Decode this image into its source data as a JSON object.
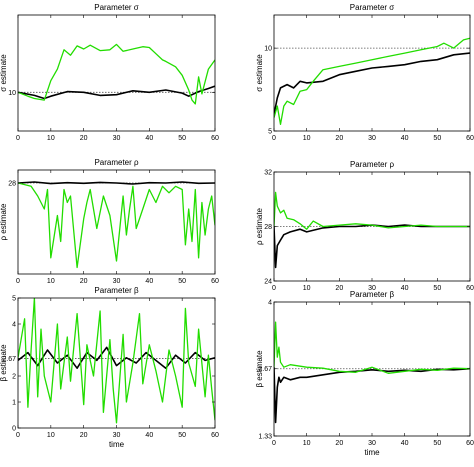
{
  "colors": {
    "true_series": "#000000",
    "estimate_series": "#22dd00",
    "reference_line": "#555555"
  },
  "chart_data": [
    {
      "type": "line",
      "title": "Parameter σ",
      "xlabel": "",
      "ylabel": "σ estimate",
      "xlim": [
        0,
        60
      ],
      "ylim": [
        5,
        20
      ],
      "xticks": [
        0,
        10,
        20,
        30,
        40,
        50,
        60
      ],
      "yticks": [
        10
      ],
      "reference": 10,
      "series": [
        {
          "x": [
            0,
            5,
            8,
            10,
            15,
            20,
            25,
            30,
            35,
            40,
            45,
            50,
            52,
            55,
            58,
            60
          ],
          "values": [
            10,
            9.6,
            9.2,
            9.5,
            10.1,
            10.0,
            9.6,
            9.7,
            10.2,
            10.0,
            10.3,
            9.9,
            9.5,
            10.1,
            10.5,
            10.8
          ]
        },
        {
          "x": [
            0,
            3,
            5,
            8,
            10,
            12,
            14,
            16,
            18,
            20,
            22,
            25,
            28,
            30,
            32,
            35,
            38,
            40,
            42,
            44,
            45,
            48,
            50,
            52,
            53,
            54,
            55,
            56,
            58,
            60
          ],
          "values": [
            10,
            9.5,
            9.2,
            9.0,
            11.5,
            13.0,
            15.5,
            14.8,
            16.0,
            15.6,
            16.1,
            15.4,
            15.5,
            16.2,
            15.3,
            15.6,
            15.9,
            15.8,
            15.0,
            14.2,
            14.0,
            13.3,
            12.2,
            10.3,
            9.0,
            8.5,
            12.0,
            9.8,
            13.0,
            14.2
          ]
        }
      ]
    },
    {
      "type": "line",
      "title": "Parameter σ",
      "xlabel": "",
      "ylabel": "σ estimate",
      "xlim": [
        0,
        60
      ],
      "ylim": [
        5,
        12
      ],
      "xticks": [
        0,
        10,
        20,
        30,
        40,
        50,
        60
      ],
      "yticks": [
        5,
        10
      ],
      "reference": 10,
      "series": [
        {
          "x": [
            0,
            1,
            2,
            4,
            6,
            8,
            10,
            15,
            20,
            25,
            30,
            35,
            40,
            45,
            50,
            55,
            60
          ],
          "values": [
            6.0,
            7.0,
            7.6,
            7.8,
            7.6,
            8.0,
            7.9,
            8.0,
            8.4,
            8.6,
            8.8,
            8.9,
            9.0,
            9.2,
            9.3,
            9.6,
            9.7
          ]
        },
        {
          "x": [
            0,
            1,
            2,
            3,
            4,
            6,
            8,
            10,
            12,
            15,
            20,
            25,
            30,
            35,
            40,
            45,
            50,
            52,
            55,
            58,
            60
          ],
          "values": [
            5.8,
            6.5,
            5.4,
            6.5,
            6.8,
            6.6,
            7.4,
            7.5,
            8.0,
            8.7,
            8.9,
            9.1,
            9.3,
            9.5,
            9.7,
            9.9,
            10.1,
            10.3,
            10.0,
            10.5,
            10.6
          ]
        }
      ]
    },
    {
      "type": "line",
      "title": "Parameter ρ",
      "xlabel": "",
      "ylabel": "ρ estimate",
      "xlim": [
        0,
        60
      ],
      "ylim": [
        0,
        32
      ],
      "xticks": [
        0,
        10,
        20,
        30,
        40,
        50,
        60
      ],
      "yticks": [
        28
      ],
      "reference": 28,
      "series": [
        {
          "x": [
            0,
            5,
            10,
            15,
            20,
            25,
            30,
            35,
            40,
            45,
            50,
            55,
            60
          ],
          "values": [
            28,
            28.3,
            27.8,
            28.1,
            27.9,
            28.2,
            28.0,
            27.7,
            28.1,
            28.0,
            28.3,
            27.9,
            28.0
          ]
        },
        {
          "x": [
            0,
            4,
            6,
            8,
            9,
            10,
            12,
            13,
            14,
            15,
            16,
            18,
            20,
            21,
            22,
            24,
            26,
            28,
            30,
            32,
            33,
            34,
            35,
            36,
            38,
            40,
            42,
            44,
            46,
            48,
            50,
            51,
            52,
            53,
            54,
            55,
            56,
            57,
            58,
            59,
            60
          ],
          "values": [
            28,
            27,
            24,
            20,
            26,
            5,
            18,
            10,
            26,
            22,
            24,
            2,
            17,
            22,
            26,
            14,
            24,
            18,
            4,
            24,
            12,
            20,
            27,
            14,
            20,
            26,
            22,
            27,
            25,
            27,
            26,
            9,
            20,
            10,
            26,
            5,
            22,
            12,
            20,
            24,
            15
          ]
        }
      ]
    },
    {
      "type": "line",
      "title": "Parameter ρ",
      "xlabel": "",
      "ylabel": "ρ estimate",
      "xlim": [
        0,
        60
      ],
      "ylim": [
        24,
        32
      ],
      "xticks": [
        0,
        10,
        20,
        30,
        40,
        50,
        60
      ],
      "yticks": [
        24,
        28,
        32
      ],
      "reference": 28,
      "series": [
        {
          "x": [
            0,
            0.5,
            1,
            2,
            3,
            5,
            8,
            10,
            15,
            20,
            25,
            30,
            35,
            40,
            45,
            50,
            55,
            60
          ],
          "values": [
            28,
            25,
            26.6,
            27.0,
            27.4,
            27.6,
            27.8,
            27.6,
            27.9,
            28.0,
            28.0,
            28.1,
            28.0,
            28.1,
            28.0,
            28.0,
            28.0,
            28.0
          ]
        },
        {
          "x": [
            0,
            0.5,
            1,
            2,
            3,
            4,
            6,
            8,
            10,
            12,
            15,
            20,
            25,
            30,
            35,
            40,
            45,
            50,
            55,
            60
          ],
          "values": [
            28,
            30.5,
            29.5,
            29.0,
            29.2,
            28.6,
            28.5,
            28.2,
            27.8,
            28.4,
            28.0,
            28.1,
            28.2,
            28.1,
            27.9,
            28.0,
            28.1,
            28.0,
            28.0,
            28.0
          ]
        }
      ]
    },
    {
      "type": "line",
      "title": "Parameter β",
      "xlabel": "time",
      "ylabel": "β estimate",
      "xlim": [
        0,
        60
      ],
      "ylim": [
        0,
        5
      ],
      "xticks": [
        0,
        10,
        20,
        30,
        40,
        50,
        60
      ],
      "yticks": [
        0,
        1,
        2,
        2.67,
        4,
        5
      ],
      "reference": 2.67,
      "series": [
        {
          "x": [
            0,
            3,
            6,
            9,
            12,
            15,
            18,
            21,
            24,
            27,
            30,
            33,
            36,
            39,
            42,
            45,
            48,
            51,
            54,
            57,
            60
          ],
          "values": [
            2.6,
            2.9,
            2.4,
            3.0,
            2.5,
            2.8,
            2.3,
            2.9,
            2.6,
            3.1,
            2.4,
            2.7,
            2.5,
            2.9,
            2.6,
            2.3,
            2.8,
            2.5,
            2.9,
            2.6,
            2.7
          ]
        },
        {
          "x": [
            0,
            2,
            3,
            4,
            5,
            6,
            7,
            8,
            10,
            12,
            13,
            15,
            16,
            18,
            20,
            21,
            23,
            25,
            26,
            28,
            29,
            30,
            32,
            33,
            35,
            37,
            38,
            40,
            42,
            44,
            46,
            48,
            50,
            51,
            52,
            54,
            55,
            57,
            58,
            59,
            60
          ],
          "values": [
            2.7,
            4.2,
            0.8,
            3.0,
            5.0,
            1.2,
            3.8,
            2.0,
            1.0,
            4.0,
            1.5,
            3.5,
            1.8,
            4.4,
            0.9,
            3.2,
            2.0,
            4.5,
            0.6,
            3.4,
            1.5,
            0.2,
            3.6,
            1.0,
            2.5,
            4.4,
            1.7,
            3.2,
            2.2,
            1.0,
            3.0,
            2.0,
            0.8,
            4.6,
            2.5,
            1.6,
            3.8,
            1.2,
            2.8,
            1.5,
            0.3
          ]
        }
      ]
    },
    {
      "type": "line",
      "title": "Parameter β",
      "xlabel": "time",
      "ylabel": "β estimate",
      "xlim": [
        0,
        60
      ],
      "ylim": [
        1.33,
        4
      ],
      "xticks": [
        0,
        10,
        20,
        30,
        40,
        50,
        60
      ],
      "yticks": [
        1.33,
        2.67,
        4
      ],
      "reference": 2.67,
      "series": [
        {
          "x": [
            0,
            0.5,
            1,
            1.5,
            2,
            3,
            5,
            8,
            10,
            15,
            20,
            25,
            30,
            35,
            40,
            45,
            50,
            55,
            60
          ],
          "values": [
            2.7,
            1.6,
            2.3,
            2.5,
            2.4,
            2.5,
            2.45,
            2.5,
            2.5,
            2.55,
            2.6,
            2.62,
            2.65,
            2.62,
            2.64,
            2.62,
            2.66,
            2.65,
            2.67
          ]
        },
        {
          "x": [
            0,
            0.5,
            1,
            1.5,
            2,
            3,
            5,
            8,
            10,
            15,
            20,
            25,
            30,
            35,
            40,
            45,
            50,
            55,
            60
          ],
          "values": [
            2.7,
            3.6,
            2.9,
            3.1,
            2.8,
            2.7,
            2.75,
            2.72,
            2.7,
            2.68,
            2.62,
            2.6,
            2.7,
            2.58,
            2.62,
            2.66,
            2.64,
            2.68,
            2.67
          ]
        }
      ]
    }
  ]
}
